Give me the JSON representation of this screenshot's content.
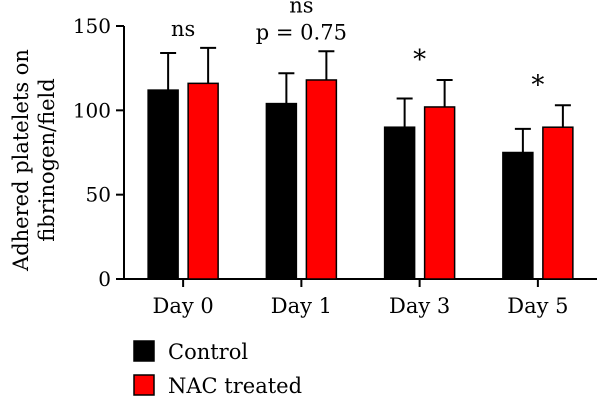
{
  "chart_data": {
    "type": "bar",
    "title": "",
    "xlabel": "",
    "ylabel_lines": [
      "Adhered platelets on",
      "fibrinogen/field"
    ],
    "ylim": [
      0,
      150
    ],
    "yticks": [
      0,
      50,
      100,
      150
    ],
    "grid": false,
    "legend_position": "bottom-left",
    "categories": [
      "Day 0",
      "Day 1",
      "Day 3",
      "Day 5"
    ],
    "series": [
      {
        "name": "Control",
        "color": "#000000",
        "values": [
          112,
          104,
          90,
          75
        ],
        "errors": [
          22,
          18,
          17,
          14
        ]
      },
      {
        "name": "NAC treated",
        "color": "#ff0000",
        "values": [
          116,
          118,
          102,
          90
        ],
        "errors": [
          21,
          17,
          16,
          13
        ]
      }
    ],
    "annotations": [
      {
        "category": "Day 0",
        "lines": [
          "ns"
        ]
      },
      {
        "category": "Day 1",
        "lines": [
          "ns",
          "p = 0.75"
        ]
      },
      {
        "category": "Day 3",
        "lines": [
          "*"
        ]
      },
      {
        "category": "Day 5",
        "lines": [
          "*"
        ]
      }
    ]
  }
}
